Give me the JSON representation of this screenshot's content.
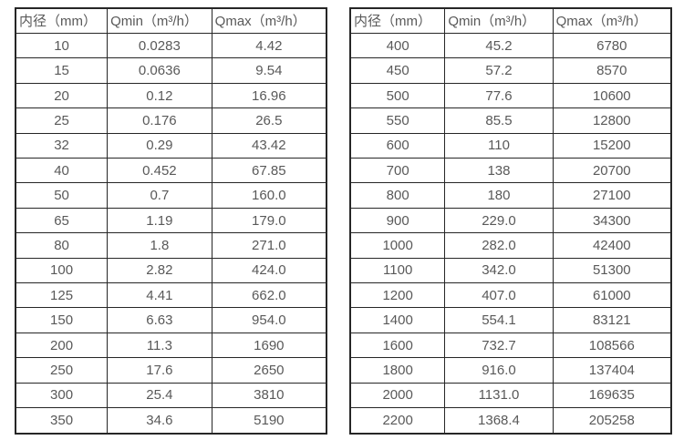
{
  "tables": [
    {
      "name": "flow-rate-table-small-diameters",
      "headers": [
        "内径（mm）",
        "Qmin（m³/h）",
        "Qmax（m³/h）"
      ],
      "rows": [
        [
          "10",
          "0.0283",
          "4.42"
        ],
        [
          "15",
          "0.0636",
          "9.54"
        ],
        [
          "20",
          "0.12",
          "16.96"
        ],
        [
          "25",
          "0.176",
          "26.5"
        ],
        [
          "32",
          "0.29",
          "43.42"
        ],
        [
          "40",
          "0.452",
          "67.85"
        ],
        [
          "50",
          "0.7",
          "160.0"
        ],
        [
          "65",
          "1.19",
          "179.0"
        ],
        [
          "80",
          "1.8",
          "271.0"
        ],
        [
          "100",
          "2.82",
          "424.0"
        ],
        [
          "125",
          "4.41",
          "662.0"
        ],
        [
          "150",
          "6.63",
          "954.0"
        ],
        [
          "200",
          "11.3",
          "1690"
        ],
        [
          "250",
          "17.6",
          "2650"
        ],
        [
          "300",
          "25.4",
          "3810"
        ],
        [
          "350",
          "34.6",
          "5190"
        ]
      ]
    },
    {
      "name": "flow-rate-table-large-diameters",
      "headers": [
        "内径（mm）",
        "Qmin（m³/h）",
        "Qmax（m³/h）"
      ],
      "rows": [
        [
          "400",
          "45.2",
          "6780"
        ],
        [
          "450",
          "57.2",
          "8570"
        ],
        [
          "500",
          "77.6",
          "10600"
        ],
        [
          "550",
          "85.5",
          "12800"
        ],
        [
          "600",
          "110",
          "15200"
        ],
        [
          "700",
          "138",
          "20700"
        ],
        [
          "800",
          "180",
          "27100"
        ],
        [
          "900",
          "229.0",
          "34300"
        ],
        [
          "1000",
          "282.0",
          "42400"
        ],
        [
          "1100",
          "342.0",
          "51300"
        ],
        [
          "1200",
          "407.0",
          "61000"
        ],
        [
          "1400",
          "554.1",
          "83121"
        ],
        [
          "1600",
          "732.7",
          "108566"
        ],
        [
          "1800",
          "916.0",
          "137404"
        ],
        [
          "2000",
          "1131.0",
          "169635"
        ],
        [
          "2200",
          "1368.4",
          "205258"
        ]
      ]
    }
  ],
  "colors": {
    "text": "#595959",
    "border": "#262626",
    "background": "#ffffff"
  }
}
